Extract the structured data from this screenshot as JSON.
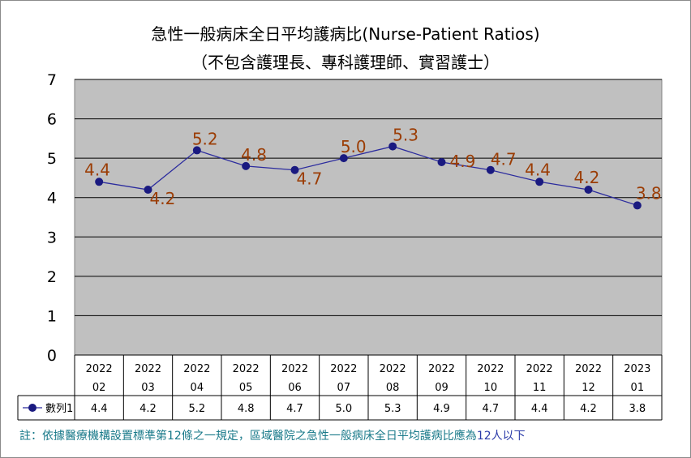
{
  "title": "急性一般病床全日平均護病比(Nurse-Patient Ratios)",
  "subtitle": "（不包含護理長、專科護理師、實習護士）",
  "footnote": {
    "prefix": "註：依據醫療機構設置標準第12條之一規定，區域醫院之急性一般病床全日平均護病比應為",
    "highlight": "12人以下"
  },
  "colors": {
    "plot_bg": "#c0c0c0",
    "line": "#2b2b9e",
    "marker": "#1a1a80",
    "data_label": "#9b3d05",
    "footnote": "#1a7a8a",
    "footnote_highlight": "#2a3aa8"
  },
  "chart_data": {
    "type": "line",
    "categories": [
      [
        "2022",
        "02"
      ],
      [
        "2022",
        "03"
      ],
      [
        "2022",
        "04"
      ],
      [
        "2022",
        "05"
      ],
      [
        "2022",
        "06"
      ],
      [
        "2022",
        "07"
      ],
      [
        "2022",
        "08"
      ],
      [
        "2022",
        "09"
      ],
      [
        "2022",
        "10"
      ],
      [
        "2022",
        "11"
      ],
      [
        "2022",
        "12"
      ],
      [
        "2023",
        "01"
      ]
    ],
    "series": [
      {
        "name": "數列1",
        "values": [
          4.4,
          4.2,
          5.2,
          4.8,
          4.7,
          5.0,
          5.3,
          4.9,
          4.7,
          4.4,
          4.2,
          3.8
        ]
      }
    ],
    "data_labels": [
      "4.4",
      "4.2",
      "5.2",
      "4.8",
      "4.7",
      "5.0",
      "5.3",
      "4.9",
      "4.7",
      "4.4",
      "4.2",
      "3.8"
    ],
    "table_values": [
      "4.4",
      "4.2",
      "5.2",
      "4.8",
      "4.7",
      "5.0",
      "5.3",
      "4.9",
      "4.7",
      "4.4",
      "4.2",
      "3.8"
    ],
    "ylim": [
      0,
      7
    ],
    "yticks": [
      0,
      1,
      2,
      3,
      4,
      5,
      6,
      7
    ],
    "grid": true,
    "legend": "data-table"
  }
}
